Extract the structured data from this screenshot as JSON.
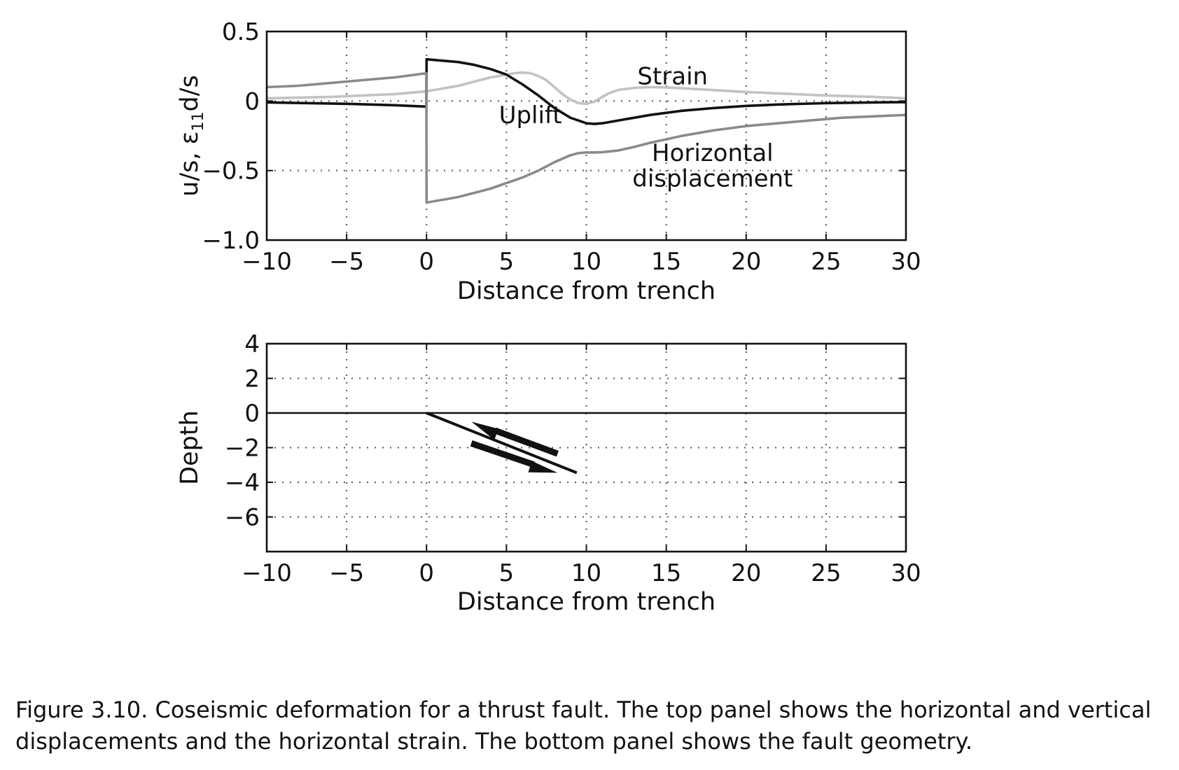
{
  "chart_data": [
    {
      "type": "line",
      "ylabel": "u/s, ε",
      "ylabel_sub": "11",
      "ylabel_tail": "d/s",
      "xlabel": "Distance from trench",
      "xlim": [
        -10,
        30
      ],
      "ylim": [
        -1.0,
        0.5
      ],
      "xticks": [
        -10,
        -5,
        0,
        5,
        10,
        15,
        20,
        25,
        30
      ],
      "xtick_labels": [
        "−10",
        "−5",
        "0",
        "5",
        "10",
        "15",
        "20",
        "25",
        "30"
      ],
      "yticks": [
        -1.0,
        -0.5,
        0,
        0.5
      ],
      "ytick_labels": [
        "−1.0",
        "−0.5",
        "0",
        "0.5"
      ],
      "grid": true,
      "series": [
        {
          "name": "Strain",
          "color": "#c2c2c2",
          "x": [
            -10,
            -8,
            -6,
            -4,
            -2,
            0,
            1,
            2,
            3,
            4,
            5,
            5.5,
            6,
            6.5,
            7,
            7.5,
            8,
            8.5,
            9,
            9.5,
            10,
            10.5,
            11,
            11.5,
            12,
            13,
            14,
            15,
            16,
            17,
            18,
            20,
            22,
            25,
            28,
            30
          ],
          "y": [
            0.02,
            0.025,
            0.03,
            0.04,
            0.05,
            0.07,
            0.09,
            0.11,
            0.14,
            0.17,
            0.19,
            0.2,
            0.205,
            0.2,
            0.18,
            0.15,
            0.1,
            0.05,
            0.01,
            -0.015,
            -0.02,
            -0.005,
            0.03,
            0.06,
            0.08,
            0.095,
            0.1,
            0.098,
            0.092,
            0.085,
            0.078,
            0.065,
            0.055,
            0.04,
            0.03,
            0.02
          ]
        },
        {
          "name": "Uplift",
          "color": "#111111",
          "x": [
            -10,
            -5,
            -2,
            -0.01,
            0,
            1,
            2,
            3,
            4,
            5,
            6,
            7,
            8,
            9,
            10,
            10.5,
            11,
            12,
            13,
            14,
            15,
            16,
            18,
            20,
            22,
            25,
            28,
            30
          ],
          "y": [
            -0.01,
            -0.02,
            -0.03,
            -0.04,
            0.3,
            0.29,
            0.28,
            0.26,
            0.23,
            0.19,
            0.12,
            0.04,
            -0.05,
            -0.12,
            -0.16,
            -0.165,
            -0.16,
            -0.14,
            -0.12,
            -0.1,
            -0.085,
            -0.07,
            -0.05,
            -0.035,
            -0.025,
            -0.015,
            -0.01,
            -0.008
          ]
        },
        {
          "name": "Horizontal displacement",
          "color": "#8a8a8a",
          "x": [
            -10,
            -8,
            -6,
            -4,
            -2,
            -0.01,
            0,
            1,
            2,
            3,
            4,
            5,
            6,
            7,
            8,
            9,
            9.5,
            10,
            10.5,
            11,
            12,
            13,
            14,
            15,
            16,
            18,
            20,
            22,
            24,
            26,
            28,
            30
          ],
          "y": [
            0.1,
            0.11,
            0.13,
            0.15,
            0.17,
            0.2,
            -0.73,
            -0.71,
            -0.69,
            -0.66,
            -0.63,
            -0.59,
            -0.55,
            -0.5,
            -0.44,
            -0.39,
            -0.375,
            -0.37,
            -0.37,
            -0.368,
            -0.355,
            -0.33,
            -0.3,
            -0.275,
            -0.25,
            -0.21,
            -0.18,
            -0.16,
            -0.14,
            -0.12,
            -0.11,
            -0.1
          ]
        }
      ],
      "annotations": [
        {
          "text": "Strain",
          "x": 15.4,
          "y": 0.12
        },
        {
          "text": "Uplift",
          "x": 6.5,
          "y": -0.16
        },
        {
          "text": "Horizontal",
          "x": 17.9,
          "y": -0.43
        },
        {
          "text": "displacement",
          "x": 17.9,
          "y": -0.615
        }
      ]
    },
    {
      "type": "line",
      "ylabel": "Depth",
      "xlabel": "Distance from trench",
      "xlim": [
        -10,
        30
      ],
      "ylim": [
        -8,
        4
      ],
      "xticks": [
        -10,
        -5,
        0,
        5,
        10,
        15,
        20,
        25,
        30
      ],
      "xtick_labels": [
        "−10",
        "−5",
        "0",
        "5",
        "10",
        "15",
        "20",
        "25",
        "30"
      ],
      "yticks": [
        -6,
        -4,
        -2,
        0,
        2,
        4
      ],
      "ytick_labels": [
        "−6",
        "−4",
        "−2",
        "0",
        "2",
        "4"
      ],
      "grid": true,
      "surface": {
        "x": [
          -10,
          30
        ],
        "y": [
          0,
          0
        ]
      },
      "fault": {
        "x": [
          0,
          9.4
        ],
        "y": [
          0,
          -3.45
        ]
      },
      "slip_arrows": [
        {
          "direction": "up-dip",
          "x": [
            8.2,
            2.8
          ],
          "y": [
            -2.35,
            -0.5
          ]
        },
        {
          "direction": "down-dip",
          "x": [
            2.8,
            8.2
          ],
          "y": [
            -1.75,
            -3.45
          ]
        }
      ]
    }
  ],
  "caption": {
    "line1": "Figure 3.10.  Coseismic deformation for a thrust fault. The top panel shows the horizontal and vertical",
    "line2": "displacements and the horizontal strain. The bottom panel shows the fault geometry."
  }
}
